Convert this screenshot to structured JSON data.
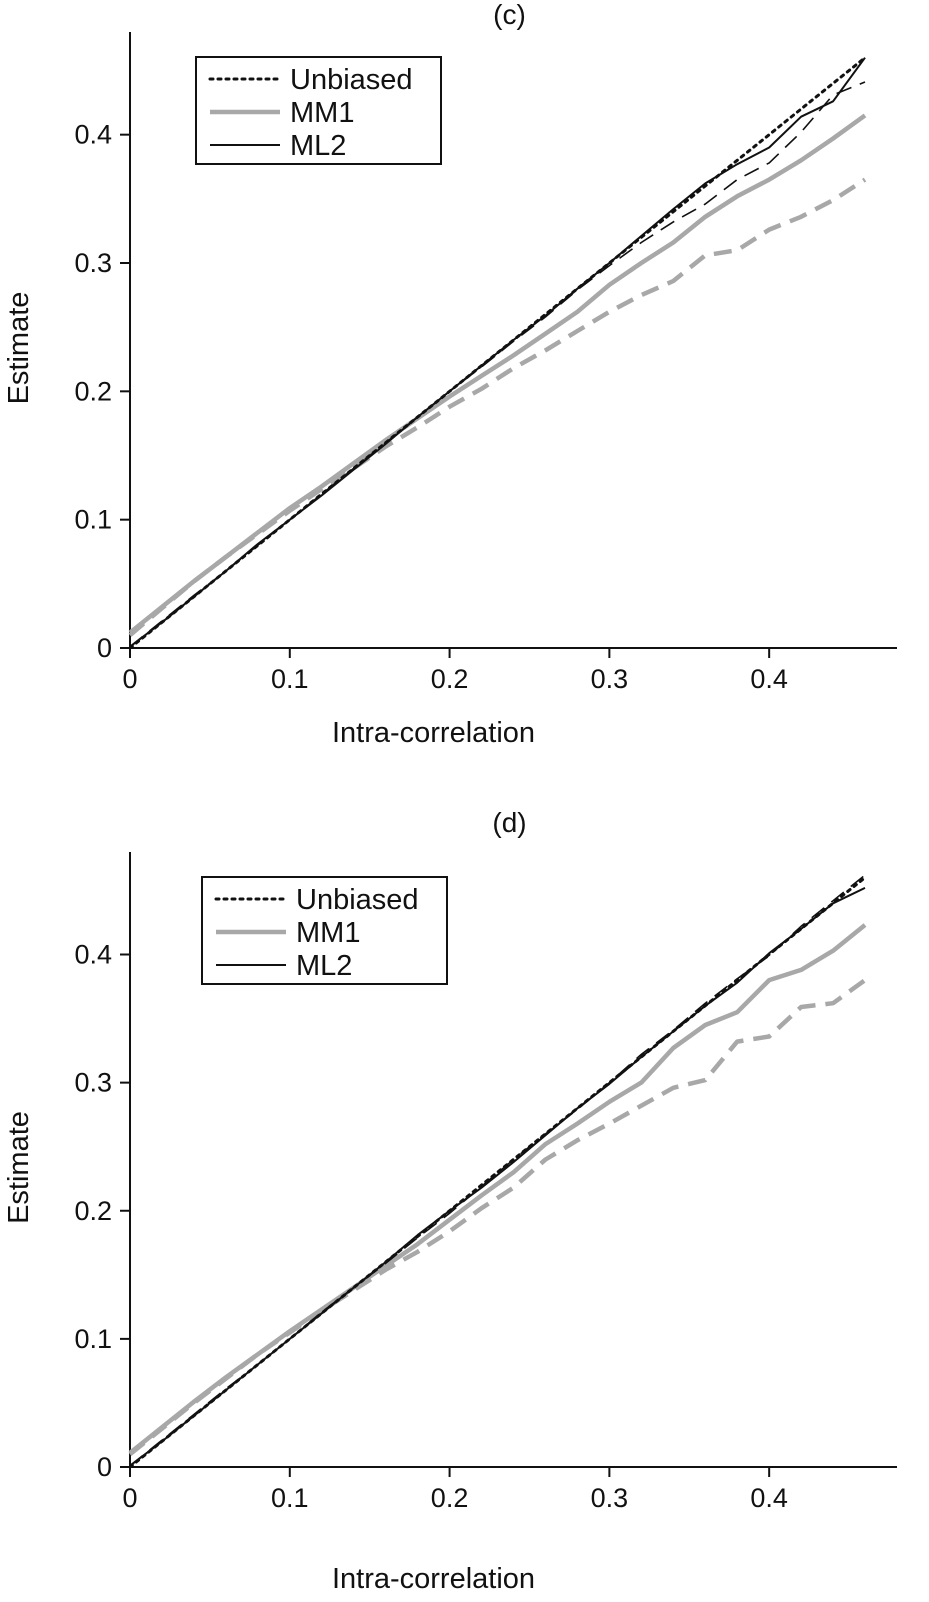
{
  "colors": {
    "unbiased": "#111111",
    "mm1": "#a8a8a8",
    "ml2": "#111111",
    "axis": "#111111",
    "background": "#ffffff"
  },
  "legend": [
    "Unbiased",
    "MM1",
    "ML2"
  ],
  "chart_data": [
    {
      "type": "line",
      "title": "(c)",
      "xlabel": "Intra-correlation",
      "ylabel": "Estimate",
      "xlim": [
        0,
        0.48
      ],
      "ylim": [
        0,
        0.48
      ],
      "xticks": [
        0,
        0.1,
        0.2,
        0.3,
        0.4
      ],
      "yticks": [
        0,
        0.1,
        0.2,
        0.3,
        0.4
      ],
      "xtick_labels": [
        "0",
        "0.1",
        "0.2",
        "0.3",
        "0.4"
      ],
      "ytick_labels": [
        "0",
        "0.1",
        "0.2",
        "0.3",
        "0.4"
      ],
      "legend_position": "top-left",
      "series": [
        {
          "name": "Unbiased",
          "style": "dotted",
          "x": [
            0,
            0.46
          ],
          "y": [
            0,
            0.46
          ]
        },
        {
          "name": "MM1",
          "style": "solid-gray",
          "x": [
            0,
            0.02,
            0.04,
            0.06,
            0.08,
            0.1,
            0.12,
            0.14,
            0.16,
            0.18,
            0.2,
            0.22,
            0.24,
            0.26,
            0.28,
            0.3,
            0.32,
            0.34,
            0.36,
            0.38,
            0.4,
            0.42,
            0.44,
            0.46
          ],
          "y": [
            0.012,
            0.032,
            0.052,
            0.071,
            0.09,
            0.109,
            0.126,
            0.144,
            0.162,
            0.179,
            0.196,
            0.212,
            0.228,
            0.245,
            0.262,
            0.283,
            0.3,
            0.316,
            0.336,
            0.352,
            0.365,
            0.38,
            0.397,
            0.415
          ]
        },
        {
          "name": "MM1 (dashed)",
          "style": "dashed-gray",
          "x": [
            0,
            0.02,
            0.04,
            0.06,
            0.08,
            0.1,
            0.12,
            0.14,
            0.16,
            0.18,
            0.2,
            0.22,
            0.24,
            0.26,
            0.28,
            0.3,
            0.32,
            0.34,
            0.36,
            0.38,
            0.4,
            0.42,
            0.44,
            0.46
          ],
          "y": [
            0.01,
            0.031,
            0.052,
            0.071,
            0.089,
            0.107,
            0.124,
            0.14,
            0.157,
            0.172,
            0.188,
            0.202,
            0.218,
            0.232,
            0.247,
            0.262,
            0.275,
            0.286,
            0.306,
            0.31,
            0.326,
            0.336,
            0.349,
            0.365
          ]
        },
        {
          "name": "ML2",
          "style": "solid-black",
          "x": [
            0,
            0.02,
            0.04,
            0.06,
            0.08,
            0.1,
            0.12,
            0.14,
            0.16,
            0.18,
            0.2,
            0.22,
            0.24,
            0.26,
            0.28,
            0.3,
            0.32,
            0.34,
            0.36,
            0.38,
            0.4,
            0.42,
            0.44,
            0.46
          ],
          "y": [
            0.001,
            0.02,
            0.04,
            0.06,
            0.081,
            0.1,
            0.119,
            0.139,
            0.159,
            0.18,
            0.2,
            0.22,
            0.24,
            0.259,
            0.28,
            0.3,
            0.321,
            0.342,
            0.362,
            0.377,
            0.39,
            0.414,
            0.426,
            0.46
          ]
        },
        {
          "name": "ML2 (dashed)",
          "style": "dashed-black",
          "x": [
            0,
            0.02,
            0.04,
            0.06,
            0.08,
            0.1,
            0.12,
            0.14,
            0.16,
            0.18,
            0.2,
            0.22,
            0.24,
            0.26,
            0.28,
            0.3,
            0.32,
            0.34,
            0.36,
            0.38,
            0.4,
            0.42,
            0.44,
            0.46
          ],
          "y": [
            0.001,
            0.021,
            0.041,
            0.06,
            0.08,
            0.1,
            0.12,
            0.14,
            0.16,
            0.18,
            0.2,
            0.219,
            0.239,
            0.258,
            0.279,
            0.298,
            0.316,
            0.332,
            0.346,
            0.365,
            0.378,
            0.402,
            0.431,
            0.441
          ]
        }
      ]
    },
    {
      "type": "line",
      "title": "(d)",
      "xlabel": "Intra-correlation",
      "ylabel": "Estimate",
      "xlim": [
        0,
        0.48
      ],
      "ylim": [
        0,
        0.48
      ],
      "xticks": [
        0,
        0.1,
        0.2,
        0.3,
        0.4
      ],
      "yticks": [
        0,
        0.1,
        0.2,
        0.3,
        0.4
      ],
      "xtick_labels": [
        "0",
        "0.1",
        "0.2",
        "0.3",
        "0.4"
      ],
      "ytick_labels": [
        "0",
        "0.1",
        "0.2",
        "0.3",
        "0.4"
      ],
      "legend_position": "top-left",
      "series": [
        {
          "name": "Unbiased",
          "style": "dotted",
          "x": [
            0,
            0.46
          ],
          "y": [
            0,
            0.46
          ]
        },
        {
          "name": "MM1",
          "style": "solid-gray",
          "x": [
            0,
            0.02,
            0.04,
            0.06,
            0.08,
            0.1,
            0.12,
            0.14,
            0.16,
            0.18,
            0.2,
            0.22,
            0.24,
            0.26,
            0.28,
            0.3,
            0.32,
            0.34,
            0.36,
            0.38,
            0.4,
            0.42,
            0.44,
            0.46
          ],
          "y": [
            0.011,
            0.031,
            0.051,
            0.07,
            0.088,
            0.106,
            0.123,
            0.14,
            0.157,
            0.174,
            0.193,
            0.212,
            0.23,
            0.252,
            0.268,
            0.285,
            0.3,
            0.327,
            0.345,
            0.355,
            0.38,
            0.388,
            0.403,
            0.423
          ]
        },
        {
          "name": "MM1 (dashed)",
          "style": "dashed-gray",
          "x": [
            0,
            0.02,
            0.04,
            0.06,
            0.08,
            0.1,
            0.12,
            0.14,
            0.16,
            0.18,
            0.2,
            0.22,
            0.24,
            0.26,
            0.28,
            0.3,
            0.32,
            0.34,
            0.36,
            0.38,
            0.4,
            0.42,
            0.44,
            0.46
          ],
          "y": [
            0.01,
            0.03,
            0.05,
            0.069,
            0.088,
            0.105,
            0.122,
            0.138,
            0.154,
            0.168,
            0.184,
            0.202,
            0.218,
            0.24,
            0.255,
            0.268,
            0.282,
            0.296,
            0.302,
            0.332,
            0.336,
            0.359,
            0.362,
            0.38
          ]
        },
        {
          "name": "ML2",
          "style": "solid-black",
          "x": [
            0,
            0.02,
            0.04,
            0.06,
            0.08,
            0.1,
            0.12,
            0.14,
            0.16,
            0.18,
            0.2,
            0.22,
            0.24,
            0.26,
            0.28,
            0.3,
            0.32,
            0.34,
            0.36,
            0.38,
            0.4,
            0.42,
            0.44,
            0.46
          ],
          "y": [
            0.001,
            0.02,
            0.04,
            0.06,
            0.08,
            0.1,
            0.12,
            0.14,
            0.16,
            0.181,
            0.2,
            0.218,
            0.238,
            0.259,
            0.28,
            0.299,
            0.32,
            0.34,
            0.36,
            0.378,
            0.401,
            0.42,
            0.44,
            0.452
          ]
        },
        {
          "name": "ML2 (dashed)",
          "style": "dashed-black",
          "x": [
            0,
            0.02,
            0.04,
            0.06,
            0.08,
            0.1,
            0.12,
            0.14,
            0.16,
            0.18,
            0.2,
            0.22,
            0.24,
            0.26,
            0.28,
            0.3,
            0.32,
            0.34,
            0.36,
            0.38,
            0.4,
            0.42,
            0.44,
            0.46
          ],
          "y": [
            0.001,
            0.021,
            0.041,
            0.061,
            0.08,
            0.1,
            0.121,
            0.14,
            0.159,
            0.179,
            0.198,
            0.219,
            0.24,
            0.26,
            0.279,
            0.3,
            0.322,
            0.341,
            0.362,
            0.381,
            0.399,
            0.422,
            0.442,
            0.462
          ]
        }
      ]
    }
  ]
}
